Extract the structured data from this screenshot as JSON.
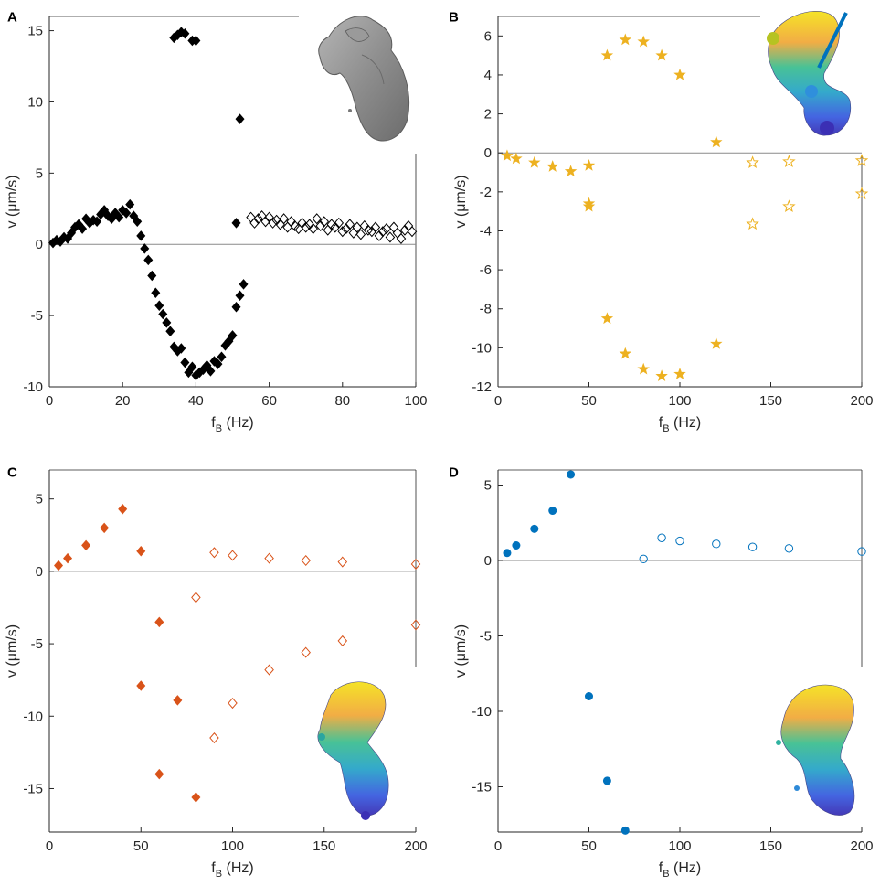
{
  "figure_title": "",
  "colors": {
    "axis": "#262626",
    "A": "#000000",
    "B": "#EDB120",
    "C": "#D95319",
    "D": "#0072BD"
  },
  "insets": {
    "A": "gray-surface-render",
    "B": "rainbow-bead-model",
    "C": "rainbow-bead-model",
    "D": "rainbow-bead-model"
  },
  "chart_data": [
    {
      "panel": "A",
      "type": "scatter",
      "marker": "diamond",
      "xlabel": "f",
      "xlabel_sub": "B",
      "xlabel_unit": "(Hz)",
      "ylabel": "v (μm/s)",
      "xlim": [
        0,
        100
      ],
      "ylim": [
        -10,
        16
      ],
      "xticks": [
        0,
        20,
        40,
        60,
        80,
        100
      ],
      "yticks": [
        -10,
        -5,
        0,
        5,
        10,
        15
      ],
      "series": [
        {
          "name": "filled",
          "filled": true,
          "points": [
            [
              1,
              0.1
            ],
            [
              2,
              0.3
            ],
            [
              3,
              0.2
            ],
            [
              4,
              0.5
            ],
            [
              5,
              0.4
            ],
            [
              6,
              0.8
            ],
            [
              7,
              1.2
            ],
            [
              8,
              1.4
            ],
            [
              9,
              1.1
            ],
            [
              10,
              1.8
            ],
            [
              11,
              1.5
            ],
            [
              12,
              1.7
            ],
            [
              13,
              1.6
            ],
            [
              14,
              2.1
            ],
            [
              15,
              2.4
            ],
            [
              16,
              2.0
            ],
            [
              17,
              1.8
            ],
            [
              18,
              2.2
            ],
            [
              19,
              1.9
            ],
            [
              20,
              2.4
            ],
            [
              21,
              2.2
            ],
            [
              22,
              2.8
            ],
            [
              23,
              2.0
            ],
            [
              24,
              1.6
            ],
            [
              25,
              0.6
            ],
            [
              26,
              -0.3
            ],
            [
              27,
              -1.1
            ],
            [
              28,
              -2.2
            ],
            [
              29,
              -3.4
            ],
            [
              30,
              -4.3
            ],
            [
              31,
              -4.9
            ],
            [
              32,
              -5.5
            ],
            [
              33,
              -6.1
            ],
            [
              34,
              -7.2
            ],
            [
              35,
              -7.5
            ],
            [
              36,
              -7.3
            ],
            [
              37,
              -8.3
            ],
            [
              38,
              -9.0
            ],
            [
              39,
              -8.6
            ],
            [
              40,
              -9.2
            ],
            [
              41,
              -9.0
            ],
            [
              42,
              -8.8
            ],
            [
              43,
              -8.5
            ],
            [
              44,
              -8.9
            ],
            [
              45,
              -8.2
            ],
            [
              46,
              -8.4
            ],
            [
              47,
              -7.9
            ],
            [
              48,
              -7.1
            ],
            [
              49,
              -6.8
            ],
            [
              50,
              -6.4
            ],
            [
              51,
              -4.4
            ],
            [
              52,
              -3.6
            ],
            [
              53,
              -2.8
            ],
            [
              34,
              14.5
            ],
            [
              35,
              14.7
            ],
            [
              36,
              14.9
            ],
            [
              37,
              14.8
            ],
            [
              39,
              14.3
            ],
            [
              40,
              14.3
            ],
            [
              52,
              8.8
            ],
            [
              51,
              1.5
            ]
          ]
        },
        {
          "name": "open",
          "filled": false,
          "points": [
            [
              55,
              1.9
            ],
            [
              56,
              1.5
            ],
            [
              57,
              1.8
            ],
            [
              58,
              2.0
            ],
            [
              59,
              1.6
            ],
            [
              60,
              1.9
            ],
            [
              61,
              1.5
            ],
            [
              62,
              1.7
            ],
            [
              63,
              1.4
            ],
            [
              64,
              1.8
            ],
            [
              65,
              1.2
            ],
            [
              66,
              1.6
            ],
            [
              67,
              1.3
            ],
            [
              68,
              1.1
            ],
            [
              69,
              1.5
            ],
            [
              70,
              1.2
            ],
            [
              71,
              1.4
            ],
            [
              72,
              1.1
            ],
            [
              73,
              1.8
            ],
            [
              74,
              1.3
            ],
            [
              75,
              1.6
            ],
            [
              76,
              1.0
            ],
            [
              77,
              1.4
            ],
            [
              78,
              1.2
            ],
            [
              79,
              1.5
            ],
            [
              80,
              0.9
            ],
            [
              81,
              1.1
            ],
            [
              82,
              1.4
            ],
            [
              83,
              0.8
            ],
            [
              84,
              1.2
            ],
            [
              85,
              0.7
            ],
            [
              86,
              1.3
            ],
            [
              87,
              1.0
            ],
            [
              88,
              0.9
            ],
            [
              89,
              1.2
            ],
            [
              90,
              0.6
            ],
            [
              91,
              0.9
            ],
            [
              92,
              1.1
            ],
            [
              93,
              0.5
            ],
            [
              94,
              1.2
            ],
            [
              95,
              0.8
            ],
            [
              96,
              0.4
            ],
            [
              97,
              1.0
            ],
            [
              98,
              1.3
            ],
            [
              99,
              0.9
            ]
          ]
        }
      ]
    },
    {
      "panel": "B",
      "type": "scatter",
      "marker": "star",
      "xlabel": "f",
      "xlabel_sub": "B",
      "xlabel_unit": "(Hz)",
      "ylabel": "v (μm/s)",
      "xlim": [
        0,
        200
      ],
      "ylim": [
        -12,
        7
      ],
      "xticks": [
        0,
        50,
        100,
        150,
        200
      ],
      "yticks": [
        -12,
        -10,
        -8,
        -6,
        -4,
        -2,
        0,
        2,
        4,
        6
      ],
      "series": [
        {
          "name": "filled",
          "filled": true,
          "points": [
            [
              5,
              -0.15
            ],
            [
              10,
              -0.3
            ],
            [
              20,
              -0.5
            ],
            [
              30,
              -0.7
            ],
            [
              40,
              -0.95
            ],
            [
              50,
              -0.65
            ],
            [
              50,
              -2.6
            ],
            [
              50,
              -2.75
            ],
            [
              60,
              5.0
            ],
            [
              70,
              5.8
            ],
            [
              80,
              5.7
            ],
            [
              90,
              5.0
            ],
            [
              100,
              4.0
            ],
            [
              120,
              0.55
            ],
            [
              60,
              -8.5
            ],
            [
              70,
              -10.3
            ],
            [
              80,
              -11.1
            ],
            [
              90,
              -11.45
            ],
            [
              100,
              -11.35
            ],
            [
              120,
              -9.8
            ]
          ]
        },
        {
          "name": "open",
          "filled": false,
          "points": [
            [
              140,
              -0.5
            ],
            [
              160,
              -0.45
            ],
            [
              200,
              -0.4
            ],
            [
              140,
              -3.65
            ],
            [
              160,
              -2.75
            ],
            [
              200,
              -2.1
            ]
          ]
        }
      ]
    },
    {
      "panel": "C",
      "type": "scatter",
      "marker": "diamond",
      "xlabel": "f",
      "xlabel_sub": "B",
      "xlabel_unit": "(Hz)",
      "ylabel": "v (μm/s)",
      "xlim": [
        0,
        200
      ],
      "ylim": [
        -18,
        7
      ],
      "xticks": [
        0,
        50,
        100,
        150,
        200
      ],
      "yticks": [
        -15,
        -10,
        -5,
        0,
        5
      ],
      "series": [
        {
          "name": "filled",
          "filled": true,
          "points": [
            [
              5,
              0.4
            ],
            [
              10,
              0.9
            ],
            [
              20,
              1.8
            ],
            [
              30,
              3.0
            ],
            [
              40,
              4.3
            ],
            [
              50,
              1.4
            ],
            [
              50,
              -7.9
            ],
            [
              60,
              -3.5
            ],
            [
              60,
              -14.0
            ],
            [
              70,
              -8.9
            ],
            [
              80,
              -15.6
            ]
          ]
        },
        {
          "name": "open",
          "filled": false,
          "points": [
            [
              90,
              1.3
            ],
            [
              100,
              1.1
            ],
            [
              120,
              0.9
            ],
            [
              140,
              0.75
            ],
            [
              160,
              0.65
            ],
            [
              200,
              0.5
            ],
            [
              80,
              -1.8
            ],
            [
              90,
              -11.5
            ],
            [
              100,
              -9.1
            ],
            [
              120,
              -6.8
            ],
            [
              140,
              -5.6
            ],
            [
              160,
              -4.8
            ],
            [
              200,
              -3.7
            ]
          ]
        }
      ]
    },
    {
      "panel": "D",
      "type": "scatter",
      "marker": "circle",
      "xlabel": "f",
      "xlabel_sub": "B",
      "xlabel_unit": "(Hz)",
      "ylabel": "v (μm/s)",
      "xlim": [
        0,
        200
      ],
      "ylim": [
        -18,
        6
      ],
      "xticks": [
        0,
        50,
        100,
        150,
        200
      ],
      "yticks": [
        -15,
        -10,
        -5,
        0,
        5
      ],
      "series": [
        {
          "name": "filled",
          "filled": true,
          "points": [
            [
              5,
              0.5
            ],
            [
              10,
              1.0
            ],
            [
              20,
              2.1
            ],
            [
              30,
              3.3
            ],
            [
              40,
              5.7
            ],
            [
              50,
              -9.0
            ],
            [
              60,
              -14.6
            ],
            [
              70,
              -17.9
            ]
          ]
        },
        {
          "name": "open",
          "filled": false,
          "points": [
            [
              80,
              0.1
            ],
            [
              90,
              1.5
            ],
            [
              100,
              1.3
            ],
            [
              120,
              1.1
            ],
            [
              140,
              0.9
            ],
            [
              160,
              0.8
            ],
            [
              200,
              0.6
            ]
          ]
        }
      ]
    }
  ]
}
